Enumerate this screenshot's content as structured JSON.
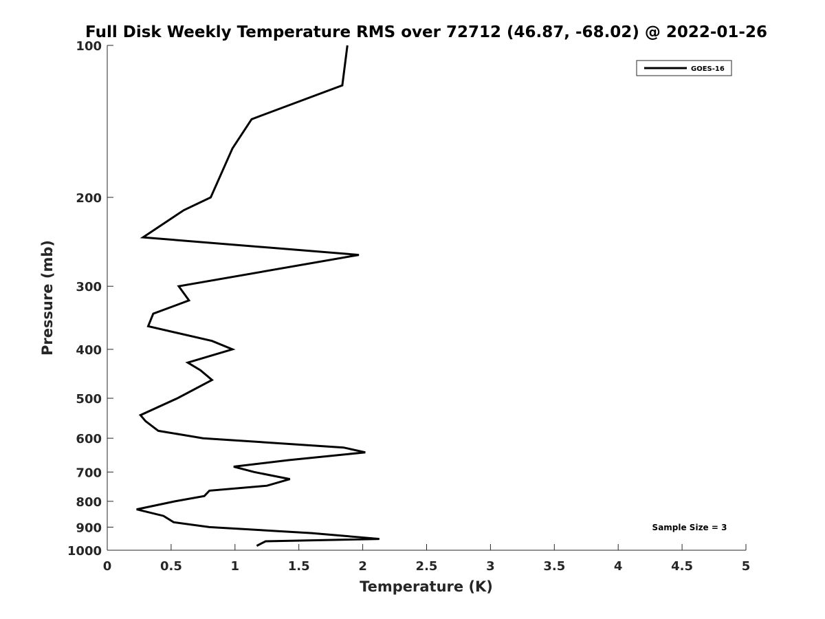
{
  "chart_data": {
    "type": "line",
    "title": "Full Disk Weekly Temperature RMS over 72712 (46.87, -68.02) @ 2022-01-26",
    "xlabel": "Temperature (K)",
    "ylabel": "Pressure (mb)",
    "xlim": [
      0,
      5
    ],
    "ylim": [
      100,
      1000
    ],
    "y_scale": "log",
    "y_reversed": true,
    "grid": false,
    "legend_position": "top-right",
    "x_ticks": [
      0,
      0.5,
      1,
      1.5,
      2,
      2.5,
      3,
      3.5,
      4,
      4.5,
      5
    ],
    "x_tick_labels": [
      "0",
      "0.5",
      "1",
      "1.5",
      "2",
      "2.5",
      "3",
      "3.5",
      "4",
      "4.5",
      "5"
    ],
    "y_ticks": [
      100,
      200,
      300,
      400,
      500,
      600,
      700,
      800,
      900,
      1000
    ],
    "y_tick_labels": [
      "100",
      "200",
      "300",
      "400",
      "500",
      "600",
      "700",
      "800",
      "900",
      "1000"
    ],
    "series": [
      {
        "name": "GOES-16",
        "color": "#000000",
        "x": [
          1.88,
          1.84,
          1.13,
          0.98,
          0.81,
          0.6,
          0.28,
          1.97,
          0.56,
          0.64,
          0.36,
          0.32,
          0.82,
          0.98,
          0.63,
          0.73,
          0.82,
          0.55,
          0.26,
          0.3,
          0.4,
          0.75,
          1.85,
          2.02,
          1.42,
          0.99,
          1.15,
          1.43,
          1.25,
          0.8,
          0.76,
          0.53,
          0.23,
          0.44,
          0.52,
          0.8,
          1.6,
          2.13,
          1.24,
          1.17
        ],
        "y": [
          100,
          120,
          140,
          160,
          200,
          212,
          240,
          260,
          300,
          320,
          340,
          360,
          385,
          400,
          425,
          440,
          460,
          500,
          540,
          555,
          580,
          600,
          626,
          640,
          663,
          683,
          700,
          723,
          745,
          762,
          781,
          800,
          830,
          855,
          880,
          900,
          925,
          950,
          960,
          980
        ]
      }
    ],
    "annotation": "Sample Size = 3"
  }
}
